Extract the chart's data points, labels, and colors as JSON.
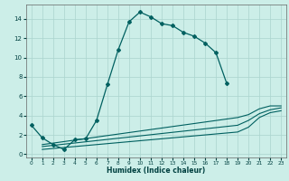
{
  "xlabel": "Humidex (Indice chaleur)",
  "bg_color": "#cceee8",
  "grid_color": "#aad4ce",
  "line_color": "#006060",
  "xlim": [
    -0.5,
    23.5
  ],
  "ylim": [
    -0.3,
    15.5
  ],
  "xticks": [
    0,
    1,
    2,
    3,
    4,
    5,
    6,
    7,
    8,
    9,
    10,
    11,
    12,
    13,
    14,
    15,
    16,
    17,
    18,
    19,
    20,
    21,
    22,
    23
  ],
  "yticks": [
    0,
    2,
    4,
    6,
    8,
    10,
    12,
    14
  ],
  "main_line_x": [
    0,
    1,
    2,
    3,
    4,
    5,
    6,
    7,
    8,
    9,
    10,
    11,
    12,
    13,
    14,
    15,
    16,
    17,
    18
  ],
  "main_line_y": [
    3.0,
    1.7,
    1.0,
    0.5,
    1.5,
    1.6,
    3.5,
    7.2,
    10.8,
    13.7,
    14.7,
    14.2,
    13.5,
    13.3,
    12.6,
    12.2,
    11.5,
    10.5,
    7.3
  ],
  "line_top_x": [
    1,
    19,
    20,
    21,
    22,
    23
  ],
  "line_top_y": [
    1.0,
    3.8,
    4.1,
    4.7,
    5.0,
    5.0
  ],
  "line_mid_x": [
    1,
    19,
    20,
    21,
    22,
    23
  ],
  "line_mid_y": [
    0.8,
    3.0,
    3.5,
    4.2,
    4.6,
    4.8
  ],
  "line_bot_x": [
    1,
    19,
    20,
    21,
    22,
    23
  ],
  "line_bot_y": [
    0.5,
    2.3,
    2.8,
    3.8,
    4.3,
    4.5
  ]
}
